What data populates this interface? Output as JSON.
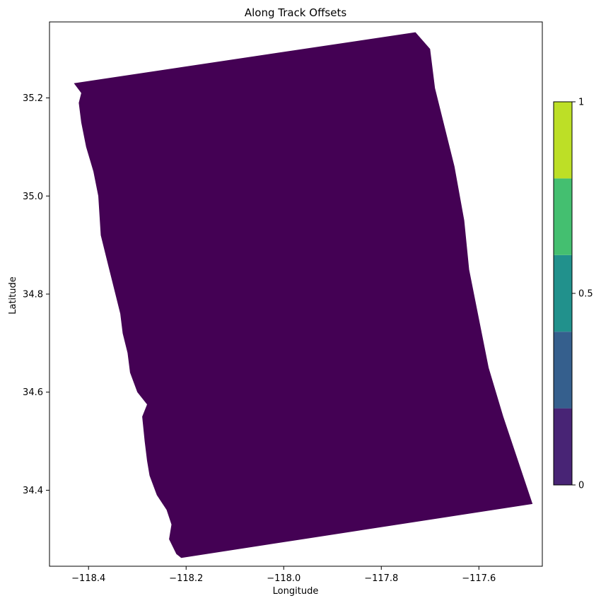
{
  "chart_data": {
    "type": "heatmap",
    "title": "Along Track Offsets",
    "xlabel": "Longitude",
    "ylabel": "Latitude",
    "xlim": [
      -118.48,
      -117.47
    ],
    "ylim": [
      34.245,
      35.355
    ],
    "xticks": [
      -118.4,
      -118.2,
      -118.0,
      -117.8,
      -117.6
    ],
    "xtick_labels": [
      "−118.4",
      "−118.2",
      "−118.0",
      "−117.8",
      "−117.6"
    ],
    "yticks": [
      34.4,
      34.6,
      34.8,
      35.0,
      35.2
    ],
    "ytick_labels": [
      "34.4",
      "34.6",
      "34.8",
      "35.0",
      "35.2"
    ],
    "grid": false,
    "fill_value": 0,
    "fill_color": "#440154",
    "swath_outline": [
      [
        -118.43,
        35.23
      ],
      [
        -117.73,
        35.334
      ],
      [
        -117.7,
        35.3
      ],
      [
        -117.69,
        35.22
      ],
      [
        -117.67,
        35.14
      ],
      [
        -117.65,
        35.06
      ],
      [
        -117.63,
        34.95
      ],
      [
        -117.62,
        34.85
      ],
      [
        -117.6,
        34.75
      ],
      [
        -117.58,
        34.65
      ],
      [
        -117.55,
        34.55
      ],
      [
        -117.49,
        34.372
      ],
      [
        -118.21,
        34.262
      ],
      [
        -118.22,
        34.27
      ],
      [
        -118.235,
        34.3
      ],
      [
        -118.23,
        34.33
      ],
      [
        -118.24,
        34.36
      ],
      [
        -118.26,
        34.39
      ],
      [
        -118.275,
        34.43
      ],
      [
        -118.28,
        34.46
      ],
      [
        -118.285,
        34.5
      ],
      [
        -118.29,
        34.55
      ],
      [
        -118.28,
        34.575
      ],
      [
        -118.3,
        34.6
      ],
      [
        -118.315,
        34.64
      ],
      [
        -118.32,
        34.68
      ],
      [
        -118.33,
        34.72
      ],
      [
        -118.335,
        34.76
      ],
      [
        -118.345,
        34.8
      ],
      [
        -118.36,
        34.86
      ],
      [
        -118.375,
        34.92
      ],
      [
        -118.38,
        35.0
      ],
      [
        -118.39,
        35.05
      ],
      [
        -118.405,
        35.1
      ],
      [
        -118.415,
        35.15
      ],
      [
        -118.42,
        35.19
      ],
      [
        -118.415,
        35.21
      ]
    ],
    "colorbar": {
      "min": 0,
      "max": 1,
      "ticks": [
        0,
        0.5,
        1
      ],
      "tick_labels": [
        "0",
        "0.5",
        "1"
      ],
      "colors": [
        "#482475",
        "#355f8d",
        "#21918c",
        "#44bf70",
        "#bddf26"
      ]
    }
  }
}
